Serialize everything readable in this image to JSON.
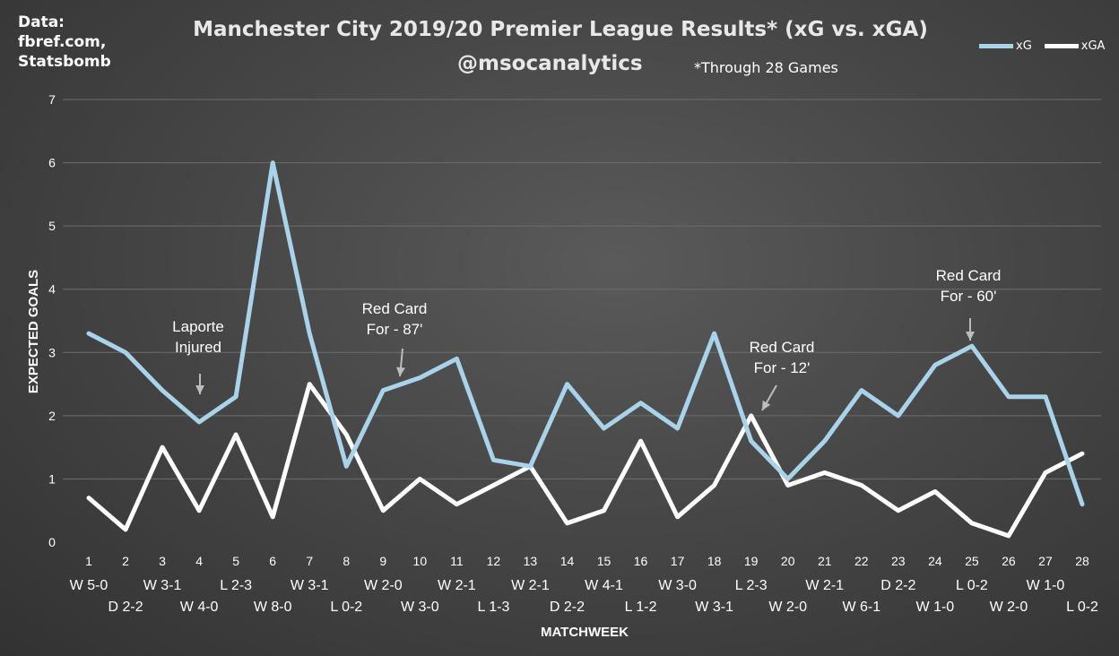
{
  "source": {
    "lines": [
      "Data:",
      "fbref.com,",
      "Statsbomb"
    ]
  },
  "header": {
    "title": "Manchester City 2019/20 Premier League Results* (xG vs. xGA)",
    "subtitle": "@msocanalytics",
    "note": "*Through 28 Games"
  },
  "colors": {
    "xg": "#a9d3ea",
    "xga": "#ffffff",
    "grid": "#6e6e6e",
    "text": "#ffffff",
    "arrow": "#bcbcbc"
  },
  "chart_data": {
    "type": "line",
    "xlabel": "MATCHWEEK",
    "ylabel": "EXPECTED GOALS",
    "ylim": [
      0,
      7
    ],
    "yticks": [
      0,
      1,
      2,
      3,
      4,
      5,
      6,
      7
    ],
    "grid": true,
    "legend_position": "top-right",
    "x": [
      1,
      2,
      3,
      4,
      5,
      6,
      7,
      8,
      9,
      10,
      11,
      12,
      13,
      14,
      15,
      16,
      17,
      18,
      19,
      20,
      21,
      22,
      23,
      24,
      25,
      26,
      27,
      28
    ],
    "results": [
      "W 5-0",
      "D 2-2",
      "W 3-1",
      "W 4-0",
      "L 2-3",
      "W 8-0",
      "W 3-1",
      "L 0-2",
      "W 2-0",
      "W 3-0",
      "W 2-1",
      "L 1-3",
      "W 2-1",
      "D 2-2",
      "W 4-1",
      "L 1-2",
      "W 3-0",
      "W 3-1",
      "L 2-3",
      "W 2-0",
      "W 2-1",
      "W 6-1",
      "D 2-2",
      "W 1-0",
      "L 0-2",
      "W 2-0",
      "W 1-0",
      "L 0-2"
    ],
    "series": [
      {
        "name": "xG",
        "values": [
          3.3,
          3.0,
          2.4,
          1.9,
          2.3,
          6.0,
          3.3,
          1.2,
          2.4,
          2.6,
          2.9,
          1.3,
          1.2,
          2.5,
          1.8,
          2.2,
          1.8,
          3.3,
          1.6,
          1.0,
          1.6,
          2.4,
          2.0,
          2.8,
          3.1,
          2.3,
          2.3,
          0.6
        ]
      },
      {
        "name": "xGA",
        "values": [
          0.7,
          0.2,
          1.5,
          0.5,
          1.7,
          0.4,
          2.5,
          1.7,
          0.5,
          1.0,
          0.6,
          0.9,
          1.2,
          0.3,
          0.5,
          1.6,
          0.4,
          0.9,
          2.0,
          0.9,
          1.1,
          0.9,
          0.5,
          0.8,
          0.3,
          0.1,
          1.1,
          1.4
        ]
      }
    ],
    "annotations": [
      {
        "lines": [
          "Laporte",
          "Injured"
        ],
        "x": 4
      },
      {
        "lines": [
          "Red Card",
          "For - 87'"
        ],
        "x": 9
      },
      {
        "lines": [
          "Red Card",
          "For - 12'"
        ],
        "x": 19
      },
      {
        "lines": [
          "Red Card",
          "For - 60'"
        ],
        "x": 25
      }
    ]
  }
}
